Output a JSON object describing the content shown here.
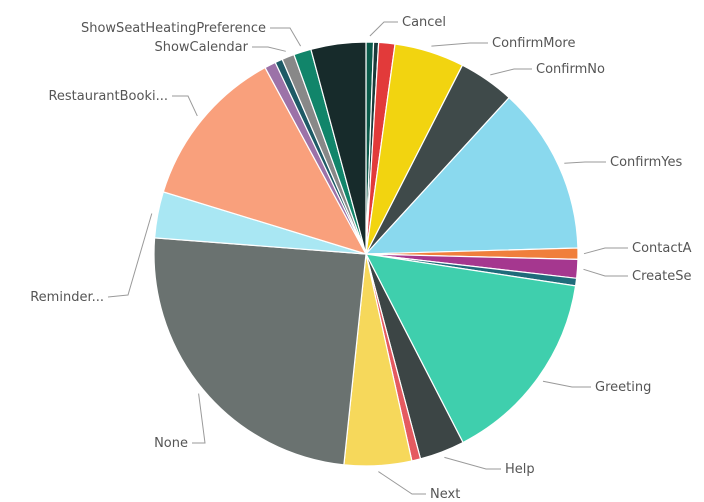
{
  "chart_data": {
    "type": "pie",
    "legend": "none",
    "labels_shown": "outside with leader lines",
    "slices": [
      {
        "label": "Cancel",
        "value": 0.6,
        "color": "#0b5a4a"
      },
      {
        "label": "",
        "value": 0.4,
        "color": "#1a3a3a"
      },
      {
        "label": "",
        "value": 1.3,
        "color": "#e23a3a"
      },
      {
        "label": "ConfirmMore",
        "value": 5.6,
        "color": "#f2d410"
      },
      {
        "label": "ConfirmNo",
        "value": 4.5,
        "color": "#3f4a4a"
      },
      {
        "label": "ConfirmYes",
        "value": 13.4,
        "color": "#8ad9ee"
      },
      {
        "label": "ContactA",
        "value": 0.9,
        "color": "#f07f3c"
      },
      {
        "label": "CreateSe",
        "value": 1.5,
        "color": "#a5378f"
      },
      {
        "label": "",
        "value": 0.6,
        "color": "#1f6b7a"
      },
      {
        "label": "Greeting",
        "value": 15.8,
        "color": "#3fcfad"
      },
      {
        "label": "Help",
        "value": 3.6,
        "color": "#3c4545"
      },
      {
        "label": "",
        "value": 0.7,
        "color": "#e55a60"
      },
      {
        "label": "Next",
        "value": 5.4,
        "color": "#f6d85b"
      },
      {
        "label": "None",
        "value": 25.8,
        "color": "#6a7270"
      },
      {
        "label": "Reminder...",
        "value": 3.7,
        "color": "#a9e7f3"
      },
      {
        "label": "RestaurantBooki...",
        "value": 13.0,
        "color": "#f9a07c"
      },
      {
        "label": "",
        "value": 0.9,
        "color": "#9c72a8"
      },
      {
        "label": "",
        "value": 0.6,
        "color": "#1e5a66"
      },
      {
        "label": "ShowCalendar",
        "value": 1.0,
        "color": "#888888"
      },
      {
        "label": "ShowSeatHeatingPreference",
        "value": 1.4,
        "color": "#11856a"
      },
      {
        "label": "",
        "value": 4.4,
        "color": "#172b2b"
      }
    ]
  }
}
